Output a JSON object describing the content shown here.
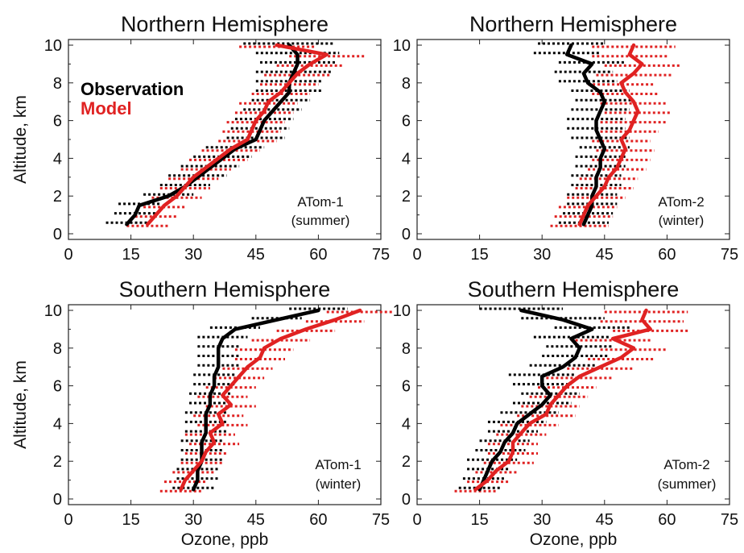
{
  "figure": {
    "ylabel": "Altitude, km",
    "xlabel": "Ozone, ppb",
    "legend": {
      "observation": "Observation",
      "model": "Model"
    },
    "colors": {
      "observation": "#000000",
      "model": "#e02222"
    }
  },
  "chart_data": [
    {
      "type": "line",
      "title": "Northern Hemisphere",
      "annotation": [
        "ATom-1",
        "(summer)"
      ],
      "show_legend": true,
      "xlabel": "",
      "ylabel": "Altitude, km",
      "xlim": [
        0,
        75
      ],
      "ylim": [
        -0.3,
        10.3
      ],
      "xticks": [
        "0",
        "15",
        "30",
        "45",
        "60",
        "75"
      ],
      "yticks": [
        "0",
        "2",
        "4",
        "6",
        "8",
        "10"
      ],
      "altitude": [
        0.5,
        1.0,
        1.5,
        2.0,
        2.5,
        3.0,
        3.5,
        4.0,
        4.5,
        5.0,
        5.5,
        6.0,
        6.5,
        7.0,
        7.5,
        8.0,
        8.5,
        9.0,
        9.5,
        10.0
      ],
      "series": [
        {
          "name": "Observation",
          "values": [
            14,
            16,
            17,
            24,
            28,
            31,
            34,
            37,
            40,
            45,
            46,
            47,
            49,
            51,
            53,
            53,
            54,
            55,
            55,
            53
          ],
          "spread": [
            5,
            5,
            5,
            6,
            6,
            7,
            7,
            7,
            7,
            7,
            7,
            7,
            7,
            7,
            8,
            8,
            9,
            9,
            10,
            11
          ]
        },
        {
          "name": "Model",
          "values": [
            19,
            21,
            23,
            26,
            28,
            30,
            33,
            36,
            39,
            43,
            44,
            45,
            47,
            48,
            51,
            53,
            55,
            58,
            62,
            50
          ],
          "spread": [
            5,
            5,
            5,
            6,
            6,
            6,
            6,
            7,
            7,
            7,
            7,
            7,
            7,
            7,
            7,
            7,
            8,
            8,
            9,
            9
          ]
        }
      ]
    },
    {
      "type": "line",
      "title": "Northern Hemisphere",
      "annotation": [
        "ATom-2",
        "(winter)"
      ],
      "show_legend": false,
      "xlabel": "",
      "ylabel": "",
      "xlim": [
        0,
        75
      ],
      "ylim": [
        -0.3,
        10.3
      ],
      "xticks": [
        "0",
        "15",
        "30",
        "45",
        "60",
        "75"
      ],
      "yticks": [
        "0",
        "2",
        "4",
        "6",
        "8",
        "10"
      ],
      "altitude": [
        0.5,
        1.0,
        1.5,
        2.0,
        2.5,
        3.0,
        3.5,
        4.0,
        4.5,
        5.0,
        5.5,
        6.0,
        6.5,
        7.0,
        7.5,
        8.0,
        8.5,
        9.0,
        9.5,
        10.0
      ],
      "series": [
        {
          "name": "Observation",
          "values": [
            40,
            41,
            42,
            42,
            43,
            43,
            44,
            44,
            45,
            44,
            43,
            43,
            44,
            45,
            44,
            41,
            40,
            42,
            36,
            37
          ],
          "spread": [
            6,
            6,
            6,
            6,
            6,
            6,
            6,
            6,
            6,
            7,
            7,
            7,
            7,
            7,
            7,
            7,
            7,
            8,
            8,
            8
          ]
        },
        {
          "name": "Model",
          "values": [
            39,
            40,
            41,
            43,
            45,
            46,
            48,
            49,
            50,
            49,
            51,
            52,
            53,
            52,
            50,
            49,
            52,
            54,
            51,
            52
          ],
          "spread": [
            7,
            7,
            7,
            7,
            7,
            7,
            7,
            7,
            7,
            7,
            7,
            8,
            8,
            8,
            8,
            8,
            9,
            9,
            9,
            10
          ]
        }
      ]
    },
    {
      "type": "line",
      "title": "Southern Hemisphere",
      "annotation": [
        "ATom-1",
        "(winter)"
      ],
      "show_legend": false,
      "xlabel": "Ozone, ppb",
      "ylabel": "Altitude, km",
      "xlim": [
        0,
        75
      ],
      "ylim": [
        -0.3,
        10.3
      ],
      "xticks": [
        "0",
        "15",
        "30",
        "45",
        "60",
        "75"
      ],
      "yticks": [
        "0",
        "2",
        "4",
        "6",
        "8",
        "10"
      ],
      "altitude": [
        0.5,
        1.0,
        1.5,
        2.0,
        2.5,
        3.0,
        3.5,
        4.0,
        4.5,
        5.0,
        5.5,
        6.0,
        6.5,
        7.0,
        7.5,
        8.0,
        8.5,
        9.0,
        9.5,
        10.0
      ],
      "series": [
        {
          "name": "Observation",
          "values": [
            30,
            31,
            31,
            32,
            32,
            32,
            33,
            33,
            33,
            34,
            34,
            35,
            35,
            36,
            36,
            36,
            37,
            40,
            50,
            60
          ],
          "spread": [
            5,
            5,
            5,
            5,
            5,
            5,
            5,
            5,
            5,
            5,
            5,
            5,
            5,
            5,
            5,
            5,
            6,
            6,
            6,
            7
          ]
        },
        {
          "name": "Model",
          "values": [
            27,
            28,
            30,
            32,
            33,
            35,
            34,
            37,
            36,
            39,
            37,
            39,
            41,
            43,
            46,
            47,
            51,
            57,
            64,
            70
          ],
          "spread": [
            5,
            5,
            5,
            5,
            5,
            6,
            6,
            6,
            6,
            6,
            6,
            6,
            6,
            6,
            6,
            7,
            7,
            7,
            7,
            8
          ]
        }
      ]
    },
    {
      "type": "line",
      "title": "Southern Hemisphere",
      "annotation": [
        "ATom-2",
        "(summer)"
      ],
      "show_legend": false,
      "xlabel": "Ozone, ppb",
      "ylabel": "",
      "xlim": [
        0,
        75
      ],
      "ylim": [
        -0.3,
        10.3
      ],
      "xticks": [
        "0",
        "15",
        "30",
        "45",
        "60",
        "75"
      ],
      "yticks": [
        "0",
        "2",
        "4",
        "6",
        "8",
        "10"
      ],
      "altitude": [
        0.5,
        1.0,
        1.5,
        2.0,
        2.5,
        3.0,
        3.5,
        4.0,
        4.5,
        5.0,
        5.5,
        6.0,
        6.5,
        7.0,
        7.5,
        8.0,
        8.5,
        9.0,
        9.5,
        10.0
      ],
      "series": [
        {
          "name": "Observation",
          "values": [
            15,
            16,
            17,
            18,
            20,
            21,
            23,
            24,
            27,
            30,
            32,
            30,
            30,
            35,
            38,
            39,
            37,
            42,
            35,
            25
          ],
          "spread": [
            5,
            5,
            5,
            6,
            6,
            6,
            6,
            7,
            7,
            7,
            7,
            7,
            8,
            8,
            8,
            8,
            9,
            9,
            10,
            10
          ]
        },
        {
          "name": "Model",
          "values": [
            14,
            17,
            19,
            22,
            23,
            23,
            25,
            27,
            31,
            32,
            34,
            36,
            39,
            44,
            49,
            52,
            47,
            56,
            54,
            55
          ],
          "spread": [
            5,
            5,
            5,
            6,
            6,
            6,
            6,
            7,
            7,
            7,
            7,
            7,
            8,
            8,
            8,
            8,
            9,
            9,
            10,
            10
          ]
        }
      ]
    }
  ]
}
